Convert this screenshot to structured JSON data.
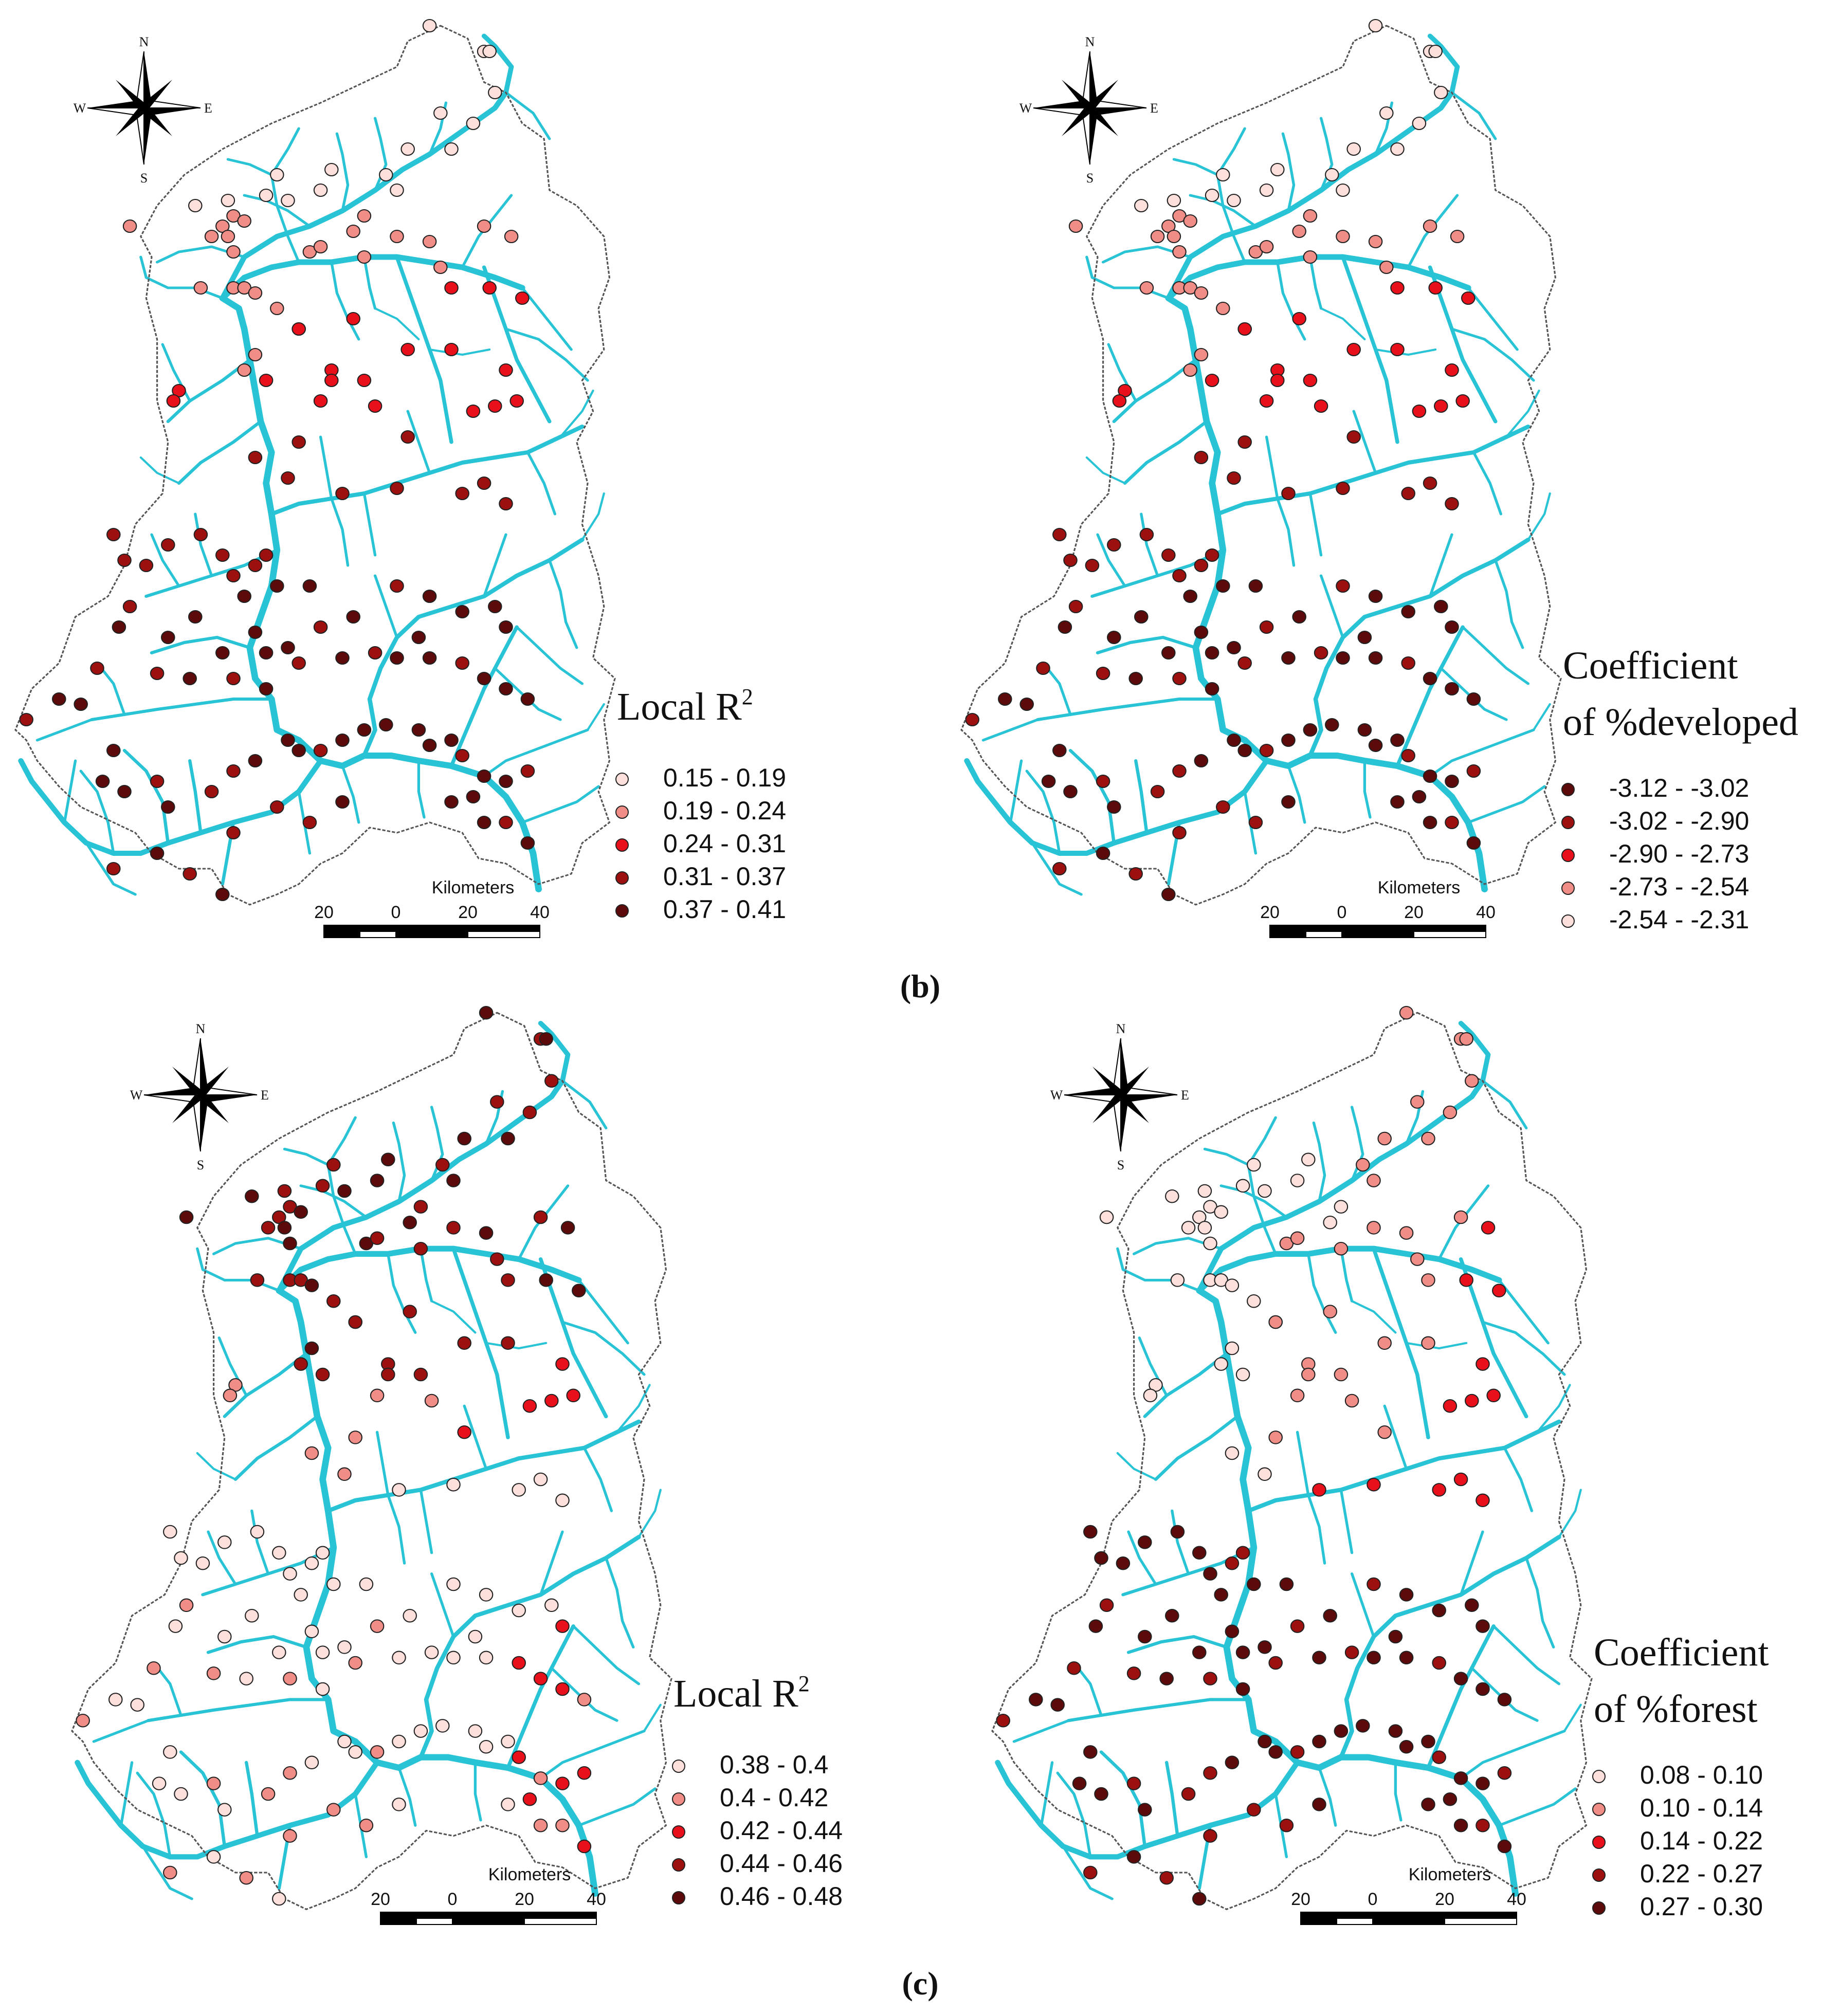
{
  "colors": {
    "river": "#29c3d6",
    "boundary": "#555555",
    "text": "#111111",
    "pale": "#fde0dc",
    "pink": "#f08d87",
    "red": "#e8101a",
    "dark_red": "#9c1010",
    "darkest": "#5c0a0a"
  },
  "compass": {
    "north": "N",
    "south": "S",
    "east": "E",
    "west": "W"
  },
  "scale_bar": {
    "unit_label": "Kilometers",
    "tick_labels": [
      "20",
      "0",
      "20",
      "40"
    ]
  },
  "panels": [
    {
      "id": "b-left",
      "legend_title_lines": [
        "Local R",
        "2"
      ],
      "legend_kind": "r2",
      "classes": [
        {
          "label": "0.15 - 0.19",
          "color": "pale"
        },
        {
          "label": "0.19 - 0.24",
          "color": "pink"
        },
        {
          "label": "0.24 - 0.31",
          "color": "red"
        },
        {
          "label": "0.31 - 0.37",
          "color": "dark_red"
        },
        {
          "label": "0.37 - 0.41",
          "color": "darkest"
        }
      ]
    },
    {
      "id": "b-right",
      "legend_title_lines": [
        "Coefficient",
        "of %developed"
      ],
      "legend_kind": "coef",
      "classes": [
        {
          "label": "-3.12 - -3.02",
          "color": "darkest"
        },
        {
          "label": "-3.02 - -2.90",
          "color": "dark_red"
        },
        {
          "label": "-2.90 - -2.73",
          "color": "red"
        },
        {
          "label": "-2.73 - -2.54",
          "color": "pink"
        },
        {
          "label": "-2.54 - -2.31",
          "color": "pale"
        }
      ]
    },
    {
      "id": "c-left",
      "legend_title_lines": [
        "Local R",
        "2"
      ],
      "legend_kind": "r2",
      "classes": [
        {
          "label": "0.38 - 0.4",
          "color": "pale"
        },
        {
          "label": "0.4 - 0.42",
          "color": "pink"
        },
        {
          "label": "0.42 - 0.44",
          "color": "red"
        },
        {
          "label": "0.44 - 0.46",
          "color": "dark_red"
        },
        {
          "label": "0.46 - 0.48",
          "color": "darkest"
        }
      ]
    },
    {
      "id": "c-right",
      "legend_title_lines": [
        "Coefficient",
        "of %forest"
      ],
      "legend_kind": "coef",
      "classes": [
        {
          "label": "0.08 - 0.10",
          "color": "pale"
        },
        {
          "label": "0.10 - 0.14",
          "color": "pink"
        },
        {
          "label": "0.14 - 0.22",
          "color": "red"
        },
        {
          "label": "0.22 - 0.27",
          "color": "dark_red"
        },
        {
          "label": "0.27 - 0.30",
          "color": "darkest"
        }
      ]
    }
  ],
  "captions": {
    "b": "(b)",
    "c": "(c)"
  }
}
